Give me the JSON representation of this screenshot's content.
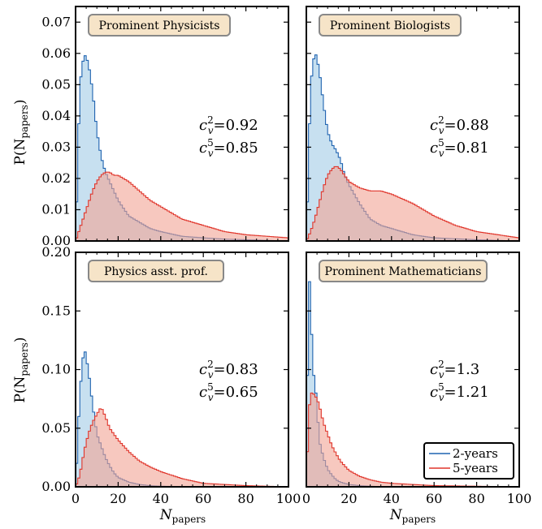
{
  "colors": {
    "two_year_line": "#1f63b0",
    "two_year_fill": "#a9cfe8",
    "five_year_line": "#e0352b",
    "five_year_fill": "#f2a495",
    "title_box_fill": "#f6e4c8",
    "title_box_stroke": "#888888"
  },
  "legend": {
    "items": [
      "2-years",
      "5-years"
    ],
    "placement": "lower-right of bottom-right panel"
  },
  "axes_text": {
    "ylabel_main": "P(N",
    "ylabel_sub": "papers",
    "ylabel_close": ")",
    "xlabel_main": "N",
    "xlabel_sub": "papers"
  },
  "chart_data": [
    {
      "type": "area",
      "title": "Prominent Physicists",
      "xlim": [
        0,
        100
      ],
      "ylim": [
        0,
        0.075
      ],
      "yticks": [
        "0.00",
        "0.01",
        "0.02",
        "0.03",
        "0.04",
        "0.05",
        "0.06",
        "0.07"
      ],
      "xticks": [],
      "annotation": {
        "c2_label": "c",
        "c2_value": "=0.92",
        "c5_value": "=0.85"
      },
      "series": [
        {
          "name": "2-years",
          "x": [
            0,
            2,
            4,
            6,
            8,
            10,
            12,
            14,
            16,
            18,
            20,
            25,
            30,
            35,
            40,
            50,
            60,
            70,
            80,
            90,
            100
          ],
          "values": [
            0.0,
            0.05,
            0.06,
            0.057,
            0.048,
            0.035,
            0.027,
            0.022,
            0.019,
            0.016,
            0.013,
            0.008,
            0.006,
            0.004,
            0.003,
            0.0015,
            0.001,
            0.0006,
            0.0004,
            0.0002,
            0.0
          ]
        },
        {
          "name": "5-years",
          "x": [
            0,
            2,
            4,
            6,
            8,
            10,
            12,
            14,
            16,
            18,
            20,
            25,
            30,
            35,
            40,
            50,
            60,
            70,
            80,
            90,
            100
          ],
          "values": [
            0.0,
            0.004,
            0.008,
            0.012,
            0.016,
            0.019,
            0.021,
            0.022,
            0.022,
            0.021,
            0.021,
            0.019,
            0.016,
            0.013,
            0.011,
            0.007,
            0.005,
            0.003,
            0.002,
            0.0015,
            0.001
          ]
        }
      ]
    },
    {
      "type": "area",
      "title": "Prominent Biologists",
      "xlim": [
        0,
        100
      ],
      "ylim": [
        0,
        0.075
      ],
      "yticks": [],
      "xticks": [],
      "annotation": {
        "c2_label": "c",
        "c2_value": "=0.88",
        "c5_value": "=0.81"
      },
      "series": [
        {
          "name": "2-years",
          "x": [
            0,
            2,
            4,
            6,
            8,
            10,
            12,
            14,
            16,
            18,
            20,
            25,
            30,
            35,
            40,
            50,
            60,
            70,
            80,
            90,
            100
          ],
          "values": [
            0.0,
            0.05,
            0.061,
            0.055,
            0.044,
            0.035,
            0.031,
            0.029,
            0.026,
            0.021,
            0.018,
            0.012,
            0.007,
            0.005,
            0.004,
            0.002,
            0.001,
            0.0007,
            0.0004,
            0.0002,
            0.0
          ]
        },
        {
          "name": "5-years",
          "x": [
            0,
            2,
            4,
            6,
            8,
            10,
            12,
            14,
            16,
            18,
            20,
            25,
            30,
            35,
            40,
            50,
            60,
            70,
            80,
            90,
            100
          ],
          "values": [
            0.0,
            0.003,
            0.007,
            0.012,
            0.017,
            0.021,
            0.023,
            0.024,
            0.023,
            0.021,
            0.019,
            0.017,
            0.016,
            0.016,
            0.015,
            0.012,
            0.008,
            0.005,
            0.003,
            0.002,
            0.001
          ]
        }
      ]
    },
    {
      "type": "area",
      "title": "Physics asst. prof.",
      "xlim": [
        0,
        100
      ],
      "ylim": [
        0,
        0.2
      ],
      "yticks": [
        "0.00",
        "0.05",
        "0.10",
        "0.15",
        "0.20"
      ],
      "xticks": [
        "0",
        "20",
        "40",
        "60",
        "80",
        "100"
      ],
      "annotation": {
        "c2_label": "c",
        "c2_value": "=0.83",
        "c5_value": "=0.65"
      },
      "series": [
        {
          "name": "2-years",
          "x": [
            0,
            2,
            4,
            6,
            8,
            10,
            12,
            14,
            16,
            18,
            20,
            25,
            30,
            35,
            40,
            50,
            60,
            70,
            80,
            90,
            100
          ],
          "values": [
            0.0,
            0.08,
            0.12,
            0.1,
            0.07,
            0.045,
            0.035,
            0.025,
            0.018,
            0.012,
            0.008,
            0.004,
            0.002,
            0.001,
            0.0005,
            0.0002,
            0.0,
            0.0,
            0.0,
            0.0,
            0.0
          ]
        },
        {
          "name": "5-years",
          "x": [
            0,
            2,
            4,
            6,
            8,
            10,
            12,
            14,
            16,
            18,
            20,
            25,
            30,
            35,
            40,
            50,
            60,
            70,
            80,
            90,
            100
          ],
          "values": [
            0.0,
            0.01,
            0.03,
            0.045,
            0.055,
            0.062,
            0.068,
            0.06,
            0.05,
            0.045,
            0.04,
            0.03,
            0.022,
            0.017,
            0.013,
            0.007,
            0.003,
            0.002,
            0.001,
            0.0005,
            0.0
          ]
        }
      ]
    },
    {
      "type": "area",
      "title": "Prominent Mathematicians",
      "xlim": [
        0,
        100
      ],
      "ylim": [
        0,
        0.2
      ],
      "yticks": [],
      "xticks": [
        "0",
        "20",
        "40",
        "60",
        "80",
        "100"
      ],
      "annotation": {
        "c2_label": "c",
        "c2_value": "=1.3",
        "c5_value": "=1.21"
      },
      "series": [
        {
          "name": "2-years",
          "x": [
            0,
            1,
            2,
            3,
            4,
            5,
            6,
            8,
            10,
            12,
            14,
            16,
            18,
            20,
            25,
            30,
            35,
            40,
            50,
            60,
            100
          ],
          "values": [
            0.0,
            0.19,
            0.16,
            0.1,
            0.09,
            0.07,
            0.04,
            0.025,
            0.015,
            0.01,
            0.006,
            0.004,
            0.003,
            0.002,
            0.001,
            0.0005,
            0.0002,
            0.0,
            0.0,
            0.0,
            0.0
          ]
        },
        {
          "name": "5-years",
          "x": [
            0,
            1,
            2,
            3,
            4,
            5,
            6,
            8,
            10,
            12,
            14,
            16,
            18,
            20,
            25,
            30,
            35,
            40,
            50,
            60,
            100
          ],
          "values": [
            0.0,
            0.06,
            0.08,
            0.08,
            0.078,
            0.075,
            0.07,
            0.055,
            0.045,
            0.035,
            0.028,
            0.022,
            0.018,
            0.014,
            0.009,
            0.006,
            0.004,
            0.003,
            0.002,
            0.001,
            0.0
          ]
        }
      ]
    }
  ]
}
